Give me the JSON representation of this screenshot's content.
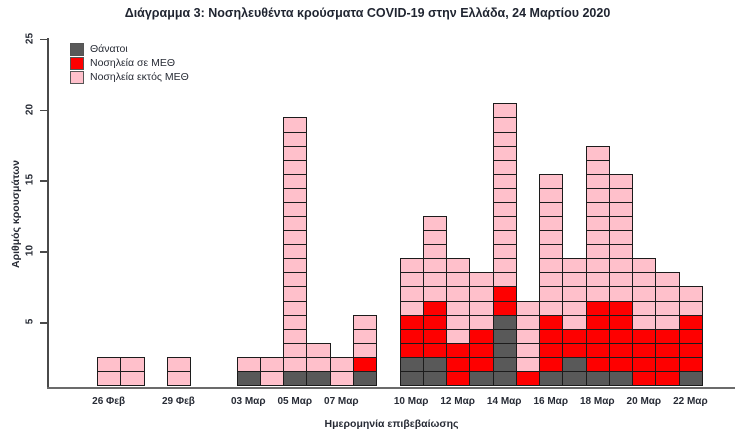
{
  "title": "Διάγραμμα 3: Νοσηλευθέντα κρούσματα COVID-19 στην Ελλάδα, 24 Μαρτίου 2020",
  "legend": [
    {
      "label": "Θάνατοι",
      "color": "#595959"
    },
    {
      "label": "Νοσηλεία σε ΜΕΘ",
      "color": "#fe0000"
    },
    {
      "label": "Νοσηλεία εκτός ΜΕΘ",
      "color": "#ffc0cb"
    }
  ],
  "chart_data": {
    "type": "bar",
    "stacked": true,
    "note_unit": "each cell = 1 case",
    "title": "Διάγραμμα 3: Νοσηλευθέντα κρούσματα COVID-19 στην Ελλάδα, 24 Μαρτίου 2020",
    "xlabel": "Ημερομηνία επιβεβαίωσης",
    "ylabel": "Αριθμός κρουσμάτων",
    "ylim": [
      0,
      25
    ],
    "yticks": [
      5,
      10,
      15,
      20,
      25
    ],
    "grid": false,
    "legend_position": "top-left",
    "categories": [
      "26 Φεβ",
      "27 Φεβ",
      "28 Φεβ",
      "29 Φεβ",
      "01 Μαρ",
      "02 Μαρ",
      "03 Μαρ",
      "04 Μαρ",
      "05 Μαρ",
      "06 Μαρ",
      "07 Μαρ",
      "08 Μαρ",
      "09 Μαρ",
      "10 Μαρ",
      "11 Μαρ",
      "12 Μαρ",
      "13 Μαρ",
      "14 Μαρ",
      "15 Μαρ",
      "16 Μαρ",
      "17 Μαρ",
      "18 Μαρ",
      "19 Μαρ",
      "20 Μαρ",
      "21 Μαρ",
      "22 Μαρ"
    ],
    "xticks": [
      {
        "day_index": 0,
        "label": "26 Φεβ"
      },
      {
        "day_index": 3,
        "label": "29 Φεβ"
      },
      {
        "day_index": 6,
        "label": "03 Μαρ"
      },
      {
        "day_index": 8,
        "label": "05 Μαρ"
      },
      {
        "day_index": 10,
        "label": "07 Μαρ"
      },
      {
        "day_index": 13,
        "label": "10 Μαρ"
      },
      {
        "day_index": 15,
        "label": "12 Μαρ"
      },
      {
        "day_index": 17,
        "label": "14 Μαρ"
      },
      {
        "day_index": 19,
        "label": "16 Μαρ"
      },
      {
        "day_index": 21,
        "label": "18 Μαρ"
      },
      {
        "day_index": 23,
        "label": "20 Μαρ"
      },
      {
        "day_index": 25,
        "label": "22 Μαρ"
      }
    ],
    "series": [
      {
        "name": "Θάνατοι",
        "color": "#595959",
        "values": [
          0,
          0,
          0,
          0,
          0,
          0,
          1,
          0,
          1,
          1,
          0,
          1,
          0,
          2,
          2,
          0,
          1,
          5,
          0,
          1,
          2,
          1,
          1,
          0,
          0,
          1
        ]
      },
      {
        "name": "Νοσηλεία σε ΜΕΘ",
        "color": "#fe0000",
        "values": [
          0,
          0,
          0,
          0,
          0,
          0,
          0,
          0,
          0,
          0,
          0,
          1,
          0,
          3,
          4,
          3,
          3,
          2,
          1,
          4,
          2,
          5,
          5,
          4,
          4,
          4
        ]
      },
      {
        "name": "Νοσηλεία εκτός ΜΕΘ",
        "color": "#ffc0cb",
        "values": [
          2,
          2,
          0,
          2,
          0,
          0,
          1,
          2,
          18,
          2,
          2,
          3,
          0,
          4,
          6,
          6,
          4,
          13,
          5,
          10,
          5,
          11,
          9,
          5,
          4,
          2
        ]
      }
    ],
    "totals": [
      2,
      2,
      0,
      2,
      0,
      0,
      2,
      2,
      19,
      3,
      2,
      5,
      0,
      9,
      12,
      9,
      8,
      20,
      6,
      15,
      9,
      17,
      15,
      9,
      8,
      7
    ]
  }
}
